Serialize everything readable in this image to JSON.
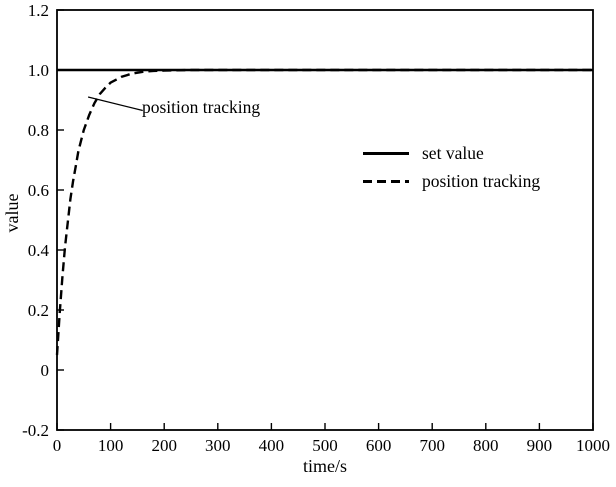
{
  "figure": {
    "background": "#ffffff",
    "line_color": "#000000"
  },
  "chart_data": {
    "type": "line",
    "title": "",
    "xlabel": "time/s",
    "ylabel": "value",
    "xlim": [
      0,
      1000
    ],
    "ylim": [
      -0.2,
      1.2
    ],
    "grid": false,
    "xticks": [
      0,
      100,
      200,
      300,
      400,
      500,
      600,
      700,
      800,
      900,
      1000
    ],
    "xtick_labels": [
      "0",
      "100",
      "200",
      "300",
      "400",
      "500",
      "600",
      "700",
      "800",
      "900",
      "1000"
    ],
    "yticks": [
      -0.2,
      0,
      0.2,
      0.4,
      0.6,
      0.8,
      1.0,
      1.2
    ],
    "ytick_labels": [
      "-0.2",
      "0",
      "0.2",
      "0.4",
      "0.6",
      "0.8",
      "1.0",
      "1.2"
    ],
    "legend": {
      "position": "center-right",
      "border": false,
      "entries": [
        {
          "label": "set value",
          "style": "solid"
        },
        {
          "label": "position tracking",
          "style": "dashed"
        }
      ]
    },
    "annotation": {
      "text": "position tracking",
      "leader": {
        "from_xy": [
          160,
          0.865
        ],
        "to_xy": [
          58,
          0.91
        ]
      }
    },
    "series": [
      {
        "name": "set value",
        "style": "solid",
        "x": [
          0,
          1000
        ],
        "y": [
          1.0,
          1.0
        ]
      },
      {
        "name": "position tracking",
        "style": "dashed",
        "x": [
          0,
          5,
          10,
          15,
          20,
          25,
          30,
          35,
          40,
          50,
          60,
          70,
          80,
          90,
          100,
          120,
          140,
          160,
          180,
          200,
          250,
          300,
          400,
          500,
          600,
          700,
          800,
          900,
          1000
        ],
        "y": [
          0.05,
          0.19,
          0.31,
          0.41,
          0.49,
          0.57,
          0.63,
          0.68,
          0.73,
          0.8,
          0.85,
          0.89,
          0.92,
          0.94,
          0.958,
          0.977,
          0.988,
          0.994,
          0.997,
          0.998,
          1.0,
          1.0,
          1.0,
          1.0,
          1.0,
          1.0,
          1.0,
          1.0,
          1.0
        ]
      }
    ]
  }
}
